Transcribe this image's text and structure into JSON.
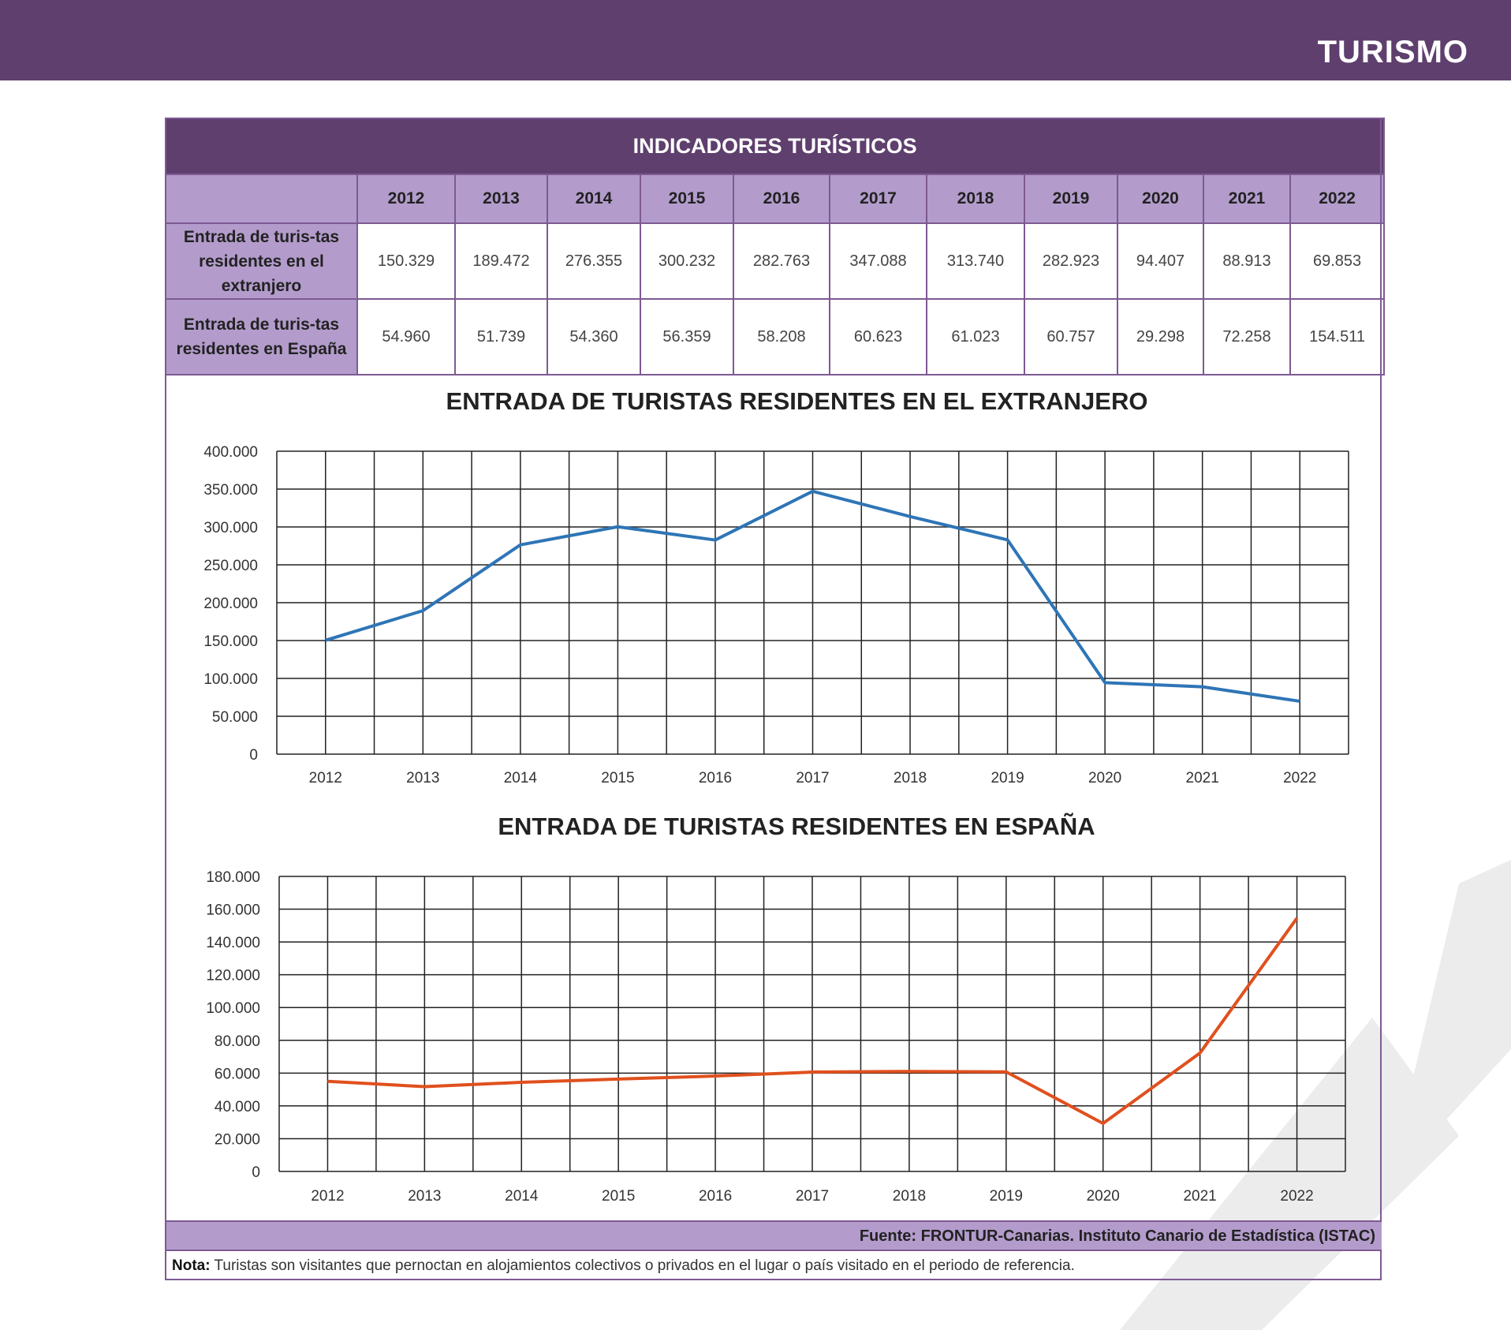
{
  "header": {
    "section_title": "TURISMO"
  },
  "table": {
    "title": "INDICADORES TURÍSTICOS",
    "years": [
      "2012",
      "2013",
      "2014",
      "2015",
      "2016",
      "2017",
      "2018",
      "2019",
      "2020",
      "2021",
      "2022"
    ],
    "rows": [
      {
        "label": "Entrada de turis-tas residentes en el extranjero",
        "values": [
          "150.329",
          "189.472",
          "276.355",
          "300.232",
          "282.763",
          "347.088",
          "313.740",
          "282.923",
          "94.407",
          "88.913",
          "69.853"
        ]
      },
      {
        "label": "Entrada de turis-tas residentes en España",
        "values": [
          "54.960",
          "51.739",
          "54.360",
          "56.359",
          "58.208",
          "60.623",
          "61.023",
          "60.757",
          "29.298",
          "72.258",
          "154.511"
        ]
      }
    ]
  },
  "chart_data": [
    {
      "type": "line",
      "title": "ENTRADA DE TURISTAS RESIDENTES EN EL EXTRANJERO",
      "categories": [
        "2012",
        "2013",
        "2014",
        "2015",
        "2016",
        "2017",
        "2018",
        "2019",
        "2020",
        "2021",
        "2022"
      ],
      "values": [
        150329,
        189472,
        276355,
        300232,
        282763,
        347088,
        313740,
        282923,
        94407,
        88913,
        69853
      ],
      "ylim": [
        0,
        400000
      ],
      "yticks": [
        "0",
        "50.000",
        "100.000",
        "150.000",
        "200.000",
        "250.000",
        "300.000",
        "350.000",
        "400.000"
      ],
      "grid": true,
      "color": "#2e75b6"
    },
    {
      "type": "line",
      "title": "ENTRADA DE TURISTAS RESIDENTES EN ESPAÑA",
      "categories": [
        "2012",
        "2013",
        "2014",
        "2015",
        "2016",
        "2017",
        "2018",
        "2019",
        "2020",
        "2021",
        "2022"
      ],
      "values": [
        54960,
        51739,
        54360,
        56359,
        58208,
        60623,
        61023,
        60757,
        29298,
        72258,
        154511
      ],
      "ylim": [
        0,
        180000
      ],
      "yticks": [
        "0",
        "20.000",
        "40.000",
        "60.000",
        "80.000",
        "100.000",
        "120.000",
        "140.000",
        "160.000",
        "180.000"
      ],
      "grid": true,
      "color": "#e0501e"
    }
  ],
  "footer": {
    "source_label": "Fuente:",
    "source_text": "FRONTUR-Canarias. Instituto Canario de Estadística (ISTAC)",
    "note_label": "Nota:",
    "note_text": "Turistas son visitantes que pernoctan en alojamientos colectivos o privados en el lugar o país visitado en el periodo de referencia."
  }
}
